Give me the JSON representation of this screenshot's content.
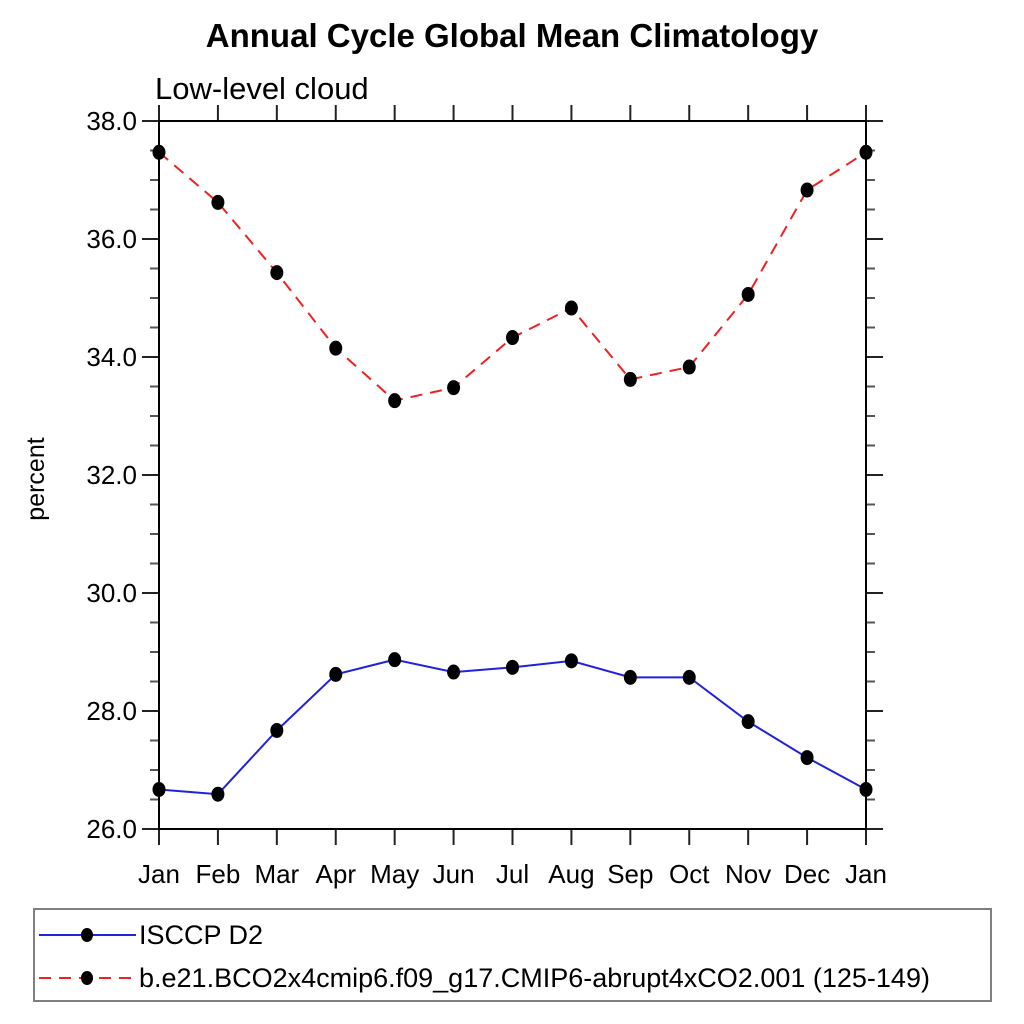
{
  "header": {
    "title": "Annual Cycle Global Mean Climatology",
    "subtitle": "Low-level cloud"
  },
  "colors": {
    "series1_line": "#2222dd",
    "series2_line": "#ee2222",
    "marker": "#000000",
    "frame": "#000000",
    "tick_major": "#222222",
    "tick_minor": "#555555",
    "legend_border": "#7f7f7f",
    "background": "#ffffff"
  },
  "chart_data": {
    "type": "line",
    "title": "Annual Cycle Global Mean Climatology",
    "subtitle": "Low-level cloud",
    "xlabel": "",
    "ylabel": "percent",
    "categories": [
      "Jan",
      "Feb",
      "Mar",
      "Apr",
      "May",
      "Jun",
      "Jul",
      "Aug",
      "Sep",
      "Oct",
      "Nov",
      "Dec",
      "Jan"
    ],
    "ylim": [
      26.0,
      38.0
    ],
    "ytick_major_step": 2.0,
    "ytick_minor_step": 0.5,
    "ytick_label_format": "one-decimal",
    "grid": false,
    "legend_position": "bottom-left boxed",
    "series": [
      {
        "name": "ISCCP D2",
        "color": "#2222dd",
        "line_style": "solid",
        "marker": "filled-circle",
        "marker_color": "#000000",
        "values": [
          26.67,
          26.59,
          27.67,
          28.62,
          28.87,
          28.66,
          28.74,
          28.85,
          28.57,
          28.57,
          27.82,
          27.21,
          26.67
        ]
      },
      {
        "name": "b.e21.BCO2x4cmip6.f09_g17.CMIP6-abrupt4xCO2.001 (125-149)",
        "color": "#ee2222",
        "line_style": "dashed",
        "marker": "filled-circle",
        "marker_color": "#000000",
        "values": [
          37.47,
          36.62,
          35.43,
          34.15,
          33.26,
          33.48,
          34.33,
          34.83,
          33.62,
          33.83,
          35.06,
          36.83,
          37.47
        ]
      }
    ]
  }
}
